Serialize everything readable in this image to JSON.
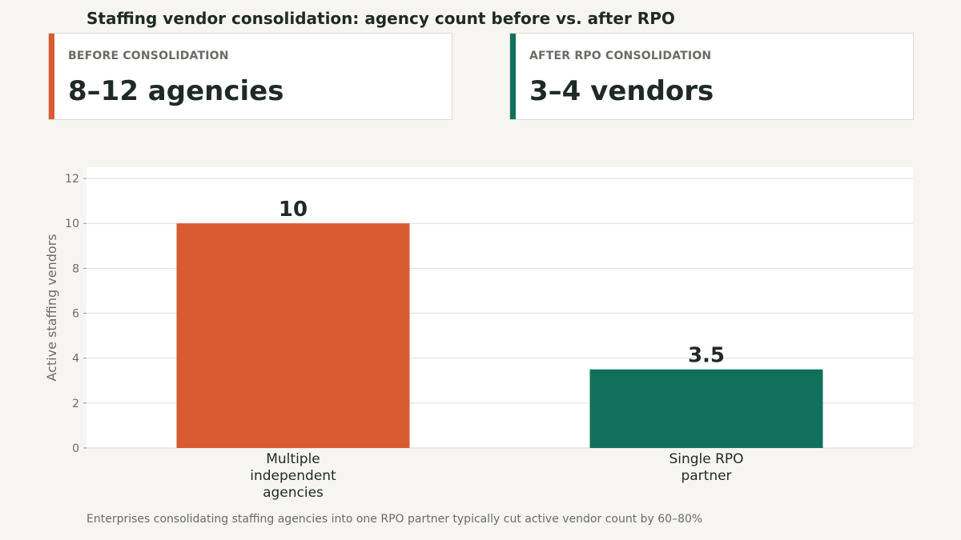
{
  "title": "Staffing vendor consolidation: agency count before vs. after RPO",
  "kpis": {
    "before": {
      "label": "BEFORE CONSOLIDATION",
      "value": "8–12 agencies",
      "color": "#d85b31"
    },
    "after": {
      "label": "AFTER RPO CONSOLIDATION",
      "value": "3–4 vendors",
      "color": "#11705b"
    }
  },
  "chart_data": {
    "type": "bar",
    "categories": [
      "Multiple\nindependent\nagencies",
      "Single RPO\npartner"
    ],
    "values": [
      10,
      3.5
    ],
    "data_labels": [
      "10",
      "3.5"
    ],
    "colors": [
      "#d85b31",
      "#11705b"
    ],
    "ylabel": "Active staffing vendors",
    "xlabel": "",
    "ylim": [
      0,
      12.5
    ],
    "yticks": [
      0,
      2,
      4,
      6,
      8,
      10,
      12
    ],
    "grid": true,
    "legend": "none"
  },
  "footnote": "Enterprises consolidating staffing agencies into one RPO partner typically cut active vendor count by 60–80%"
}
